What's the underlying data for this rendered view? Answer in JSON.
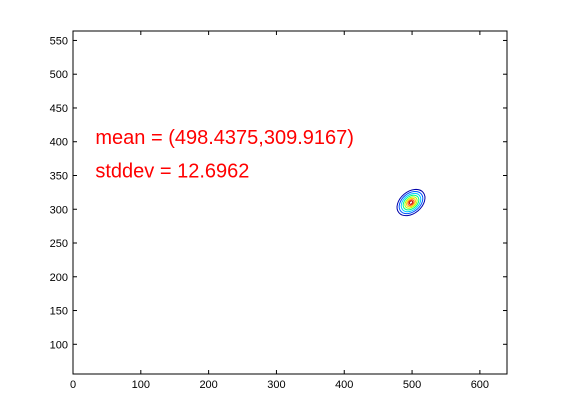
{
  "window": {
    "background": "#ffffff"
  },
  "chart_data": {
    "type": "contour",
    "title": "",
    "xlabel": "",
    "ylabel": "",
    "xlim": [
      0,
      640
    ],
    "ylim": [
      56,
      564
    ],
    "xticks": [
      0,
      100,
      200,
      300,
      400,
      500,
      600
    ],
    "yticks": [
      100,
      150,
      200,
      250,
      300,
      350,
      400,
      450,
      500,
      550
    ],
    "grid": false,
    "annotations": [
      {
        "text": "mean = (498.4375,309.9167)",
        "x": 33,
        "y": 397,
        "color": "#ff0000"
      },
      {
        "text": "stddev = 12.6962",
        "x": 33,
        "y": 347,
        "color": "#ff0000"
      }
    ],
    "gaussian": {
      "mean": [
        498.4375,
        309.9167
      ],
      "stddev": 12.6962,
      "tilt_deg": 40
    },
    "contour_levels": [
      {
        "scale_sigma": 1.75,
        "color": "#0000aa"
      },
      {
        "scale_sigma": 1.48,
        "color": "#0055ff"
      },
      {
        "scale_sigma": 1.22,
        "color": "#00c8ff"
      },
      {
        "scale_sigma": 0.98,
        "color": "#00ff80"
      },
      {
        "scale_sigma": 0.76,
        "color": "#b0ff00"
      },
      {
        "scale_sigma": 0.56,
        "color": "#ffd000"
      },
      {
        "scale_sigma": 0.38,
        "color": "#ff5000"
      },
      {
        "scale_sigma": 0.22,
        "color": "#c00000"
      }
    ]
  }
}
